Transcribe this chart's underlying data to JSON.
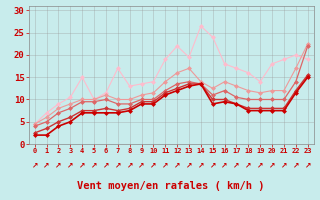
{
  "x": [
    0,
    1,
    2,
    3,
    4,
    5,
    6,
    7,
    8,
    9,
    10,
    11,
    12,
    13,
    14,
    15,
    16,
    17,
    18,
    19,
    20,
    21,
    22,
    23
  ],
  "lines": [
    [
      2.0,
      2.0,
      4.0,
      5.0,
      7.0,
      7.0,
      7.0,
      7.0,
      7.5,
      9.0,
      9.0,
      11.0,
      12.0,
      13.0,
      13.5,
      9.0,
      9.5,
      9.0,
      7.5,
      7.5,
      7.5,
      7.5,
      11.5,
      15.0
    ],
    [
      2.5,
      3.5,
      5.0,
      6.0,
      7.5,
      7.5,
      8.0,
      7.5,
      8.0,
      9.5,
      9.5,
      11.5,
      12.5,
      13.5,
      13.5,
      10.0,
      10.0,
      9.0,
      8.0,
      8.0,
      8.0,
      8.0,
      12.0,
      15.5
    ],
    [
      4.0,
      5.0,
      7.0,
      8.0,
      9.5,
      9.5,
      10.0,
      9.0,
      9.0,
      10.0,
      10.0,
      12.0,
      13.5,
      14.0,
      13.5,
      11.0,
      12.0,
      10.5,
      10.0,
      10.0,
      10.0,
      10.0,
      14.0,
      22.0
    ],
    [
      4.5,
      6.0,
      8.0,
      9.0,
      10.0,
      10.0,
      11.0,
      10.0,
      10.0,
      11.0,
      11.5,
      14.0,
      16.0,
      17.0,
      14.0,
      12.5,
      14.0,
      13.0,
      12.0,
      11.5,
      12.0,
      12.0,
      17.0,
      22.5
    ],
    [
      4.5,
      7.0,
      9.0,
      10.5,
      15.0,
      10.0,
      11.5,
      17.0,
      13.0,
      13.5,
      14.0,
      19.0,
      22.0,
      19.5,
      26.5,
      24.0,
      18.0,
      17.0,
      16.0,
      14.0,
      18.0,
      19.0,
      20.0,
      19.0
    ]
  ],
  "line_colors": [
    "#cc0000",
    "#cc3333",
    "#dd6666",
    "#ee9999",
    "#ffbbcc"
  ],
  "line_widths": [
    1.2,
    1.0,
    0.9,
    0.8,
    0.8
  ],
  "marker_size": 2.5,
  "bg_color": "#c8ecec",
  "grid_color": "#999999",
  "xlabel": "Vent moyen/en rafales ( km/h )",
  "ylabel_ticks": [
    0,
    5,
    10,
    15,
    20,
    25,
    30
  ],
  "ylim": [
    0,
    31
  ],
  "xlim_min": -0.5,
  "xlim_max": 23.5,
  "xlabel_color": "#cc0000",
  "tick_color": "#cc0000",
  "spine_color": "#888888",
  "arrow_symbol": "↗"
}
